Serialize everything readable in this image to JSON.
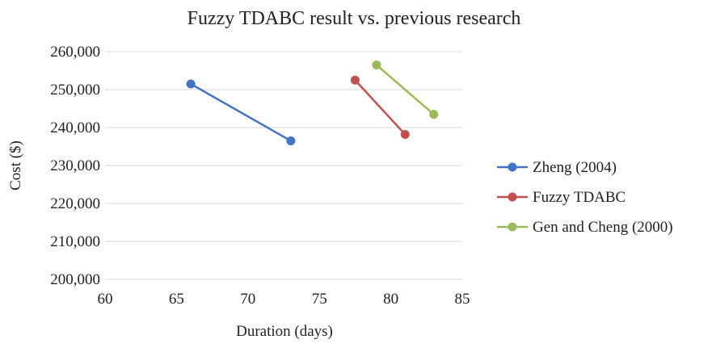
{
  "chart_data": {
    "type": "scatter",
    "title": "Fuzzy TDABC result vs. previous research",
    "xlabel": "Duration (days)",
    "ylabel": "Cost ($)",
    "xlim": [
      60,
      85
    ],
    "ylim": [
      200000,
      260000
    ],
    "xticks": [
      "60",
      "65",
      "70",
      "75",
      "80",
      "85"
    ],
    "yticks": [
      "200,000",
      "210,000",
      "220,000",
      "230,000",
      "240,000",
      "250,000",
      "260,000"
    ],
    "grid": "horizontal",
    "legend": "right",
    "series": [
      {
        "name": "Zheng (2004)",
        "color": "#4472C4",
        "points": [
          [
            66,
            251500
          ],
          [
            73,
            236500
          ]
        ]
      },
      {
        "name": "Fuzzy TDABC",
        "color": "#C0504D",
        "points": [
          [
            77.5,
            252500
          ],
          [
            81,
            238200
          ]
        ]
      },
      {
        "name": "Gen and Cheng (2000)",
        "color": "#9BBB59",
        "points": [
          [
            79,
            256500
          ],
          [
            83,
            243500
          ]
        ]
      }
    ]
  }
}
